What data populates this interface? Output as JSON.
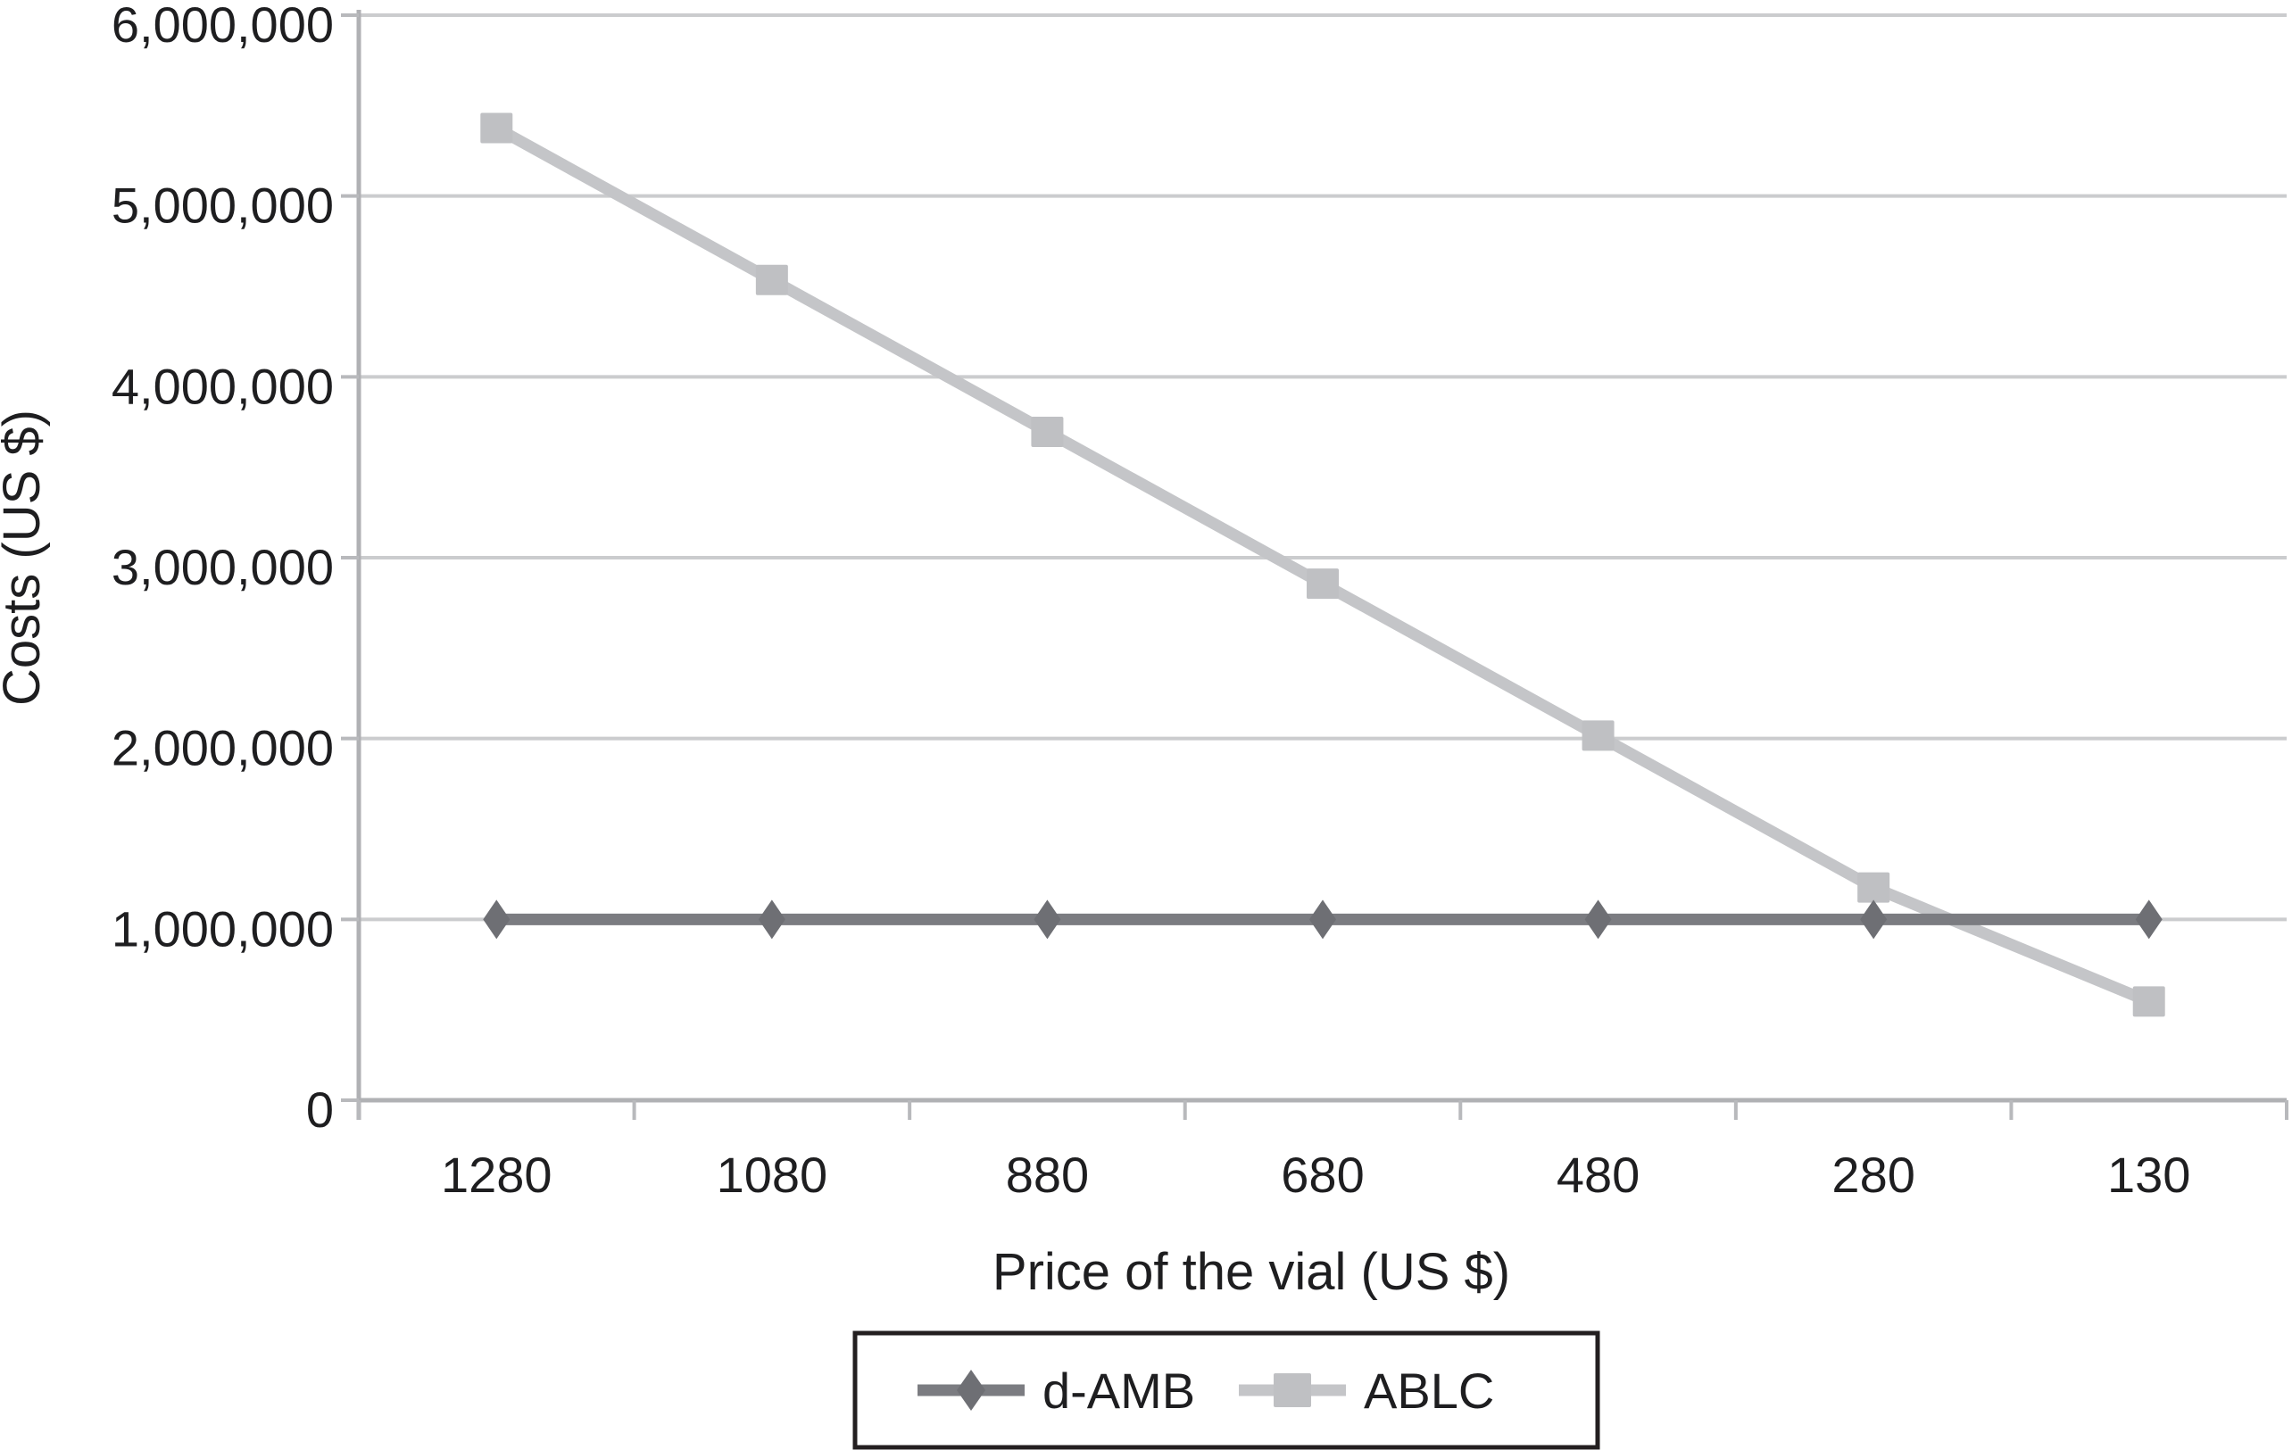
{
  "colors": {
    "background": "#ffffff",
    "grid": "#cbccce",
    "axis": "#b0b1b4",
    "tick": "#b8b9bc",
    "text": "#1e1e20",
    "legend_border": "#231f20"
  },
  "chart_data": {
    "type": "line",
    "title": "",
    "xlabel": "Price of the vial (US $)",
    "ylabel": "Costs (US $)",
    "categories": [
      "1280",
      "1080",
      "880",
      "680",
      "480",
      "280",
      "130"
    ],
    "ylim": [
      0,
      6000000
    ],
    "y_ticks": [
      0,
      1000000,
      2000000,
      3000000,
      4000000,
      5000000,
      6000000
    ],
    "y_tick_labels": [
      "0",
      "1,000,000",
      "2,000,000",
      "3,000,000",
      "4,000,000",
      "5,000,000",
      "6,000,000"
    ],
    "grid": "horizontal-only",
    "legend_position": "bottom-center",
    "series": [
      {
        "name": "d-AMB",
        "marker": "diamond",
        "color": "#7b7c81",
        "marker_color": "#6e6f74",
        "values": [
          1000000,
          1000000,
          1000000,
          1000000,
          1000000,
          1000000,
          1000000
        ]
      },
      {
        "name": "ABLC",
        "marker": "square",
        "color": "#c4c5c8",
        "marker_color": "#bfc0c3",
        "values": [
          5376000,
          4536000,
          3696000,
          2856000,
          2016000,
          1176000,
          546000
        ]
      }
    ]
  }
}
